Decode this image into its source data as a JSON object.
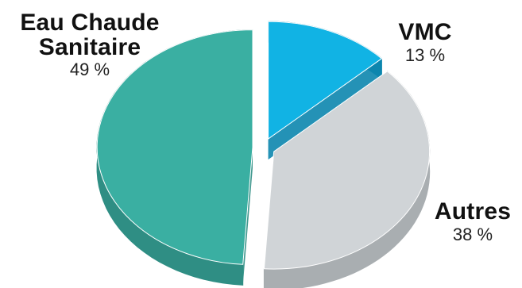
{
  "chart_data": {
    "type": "pie",
    "title": "",
    "slices": [
      {
        "name": "Eau Chaude Sanitaire",
        "value": 49,
        "label_lines": [
          "Eau Chaude",
          "Sanitaire"
        ],
        "pct_label": "49 %",
        "color": "#3aafa2",
        "side_color": "#2f8e84"
      },
      {
        "name": "VMC",
        "value": 13,
        "label_lines": [
          "VMC"
        ],
        "pct_label": "13 %",
        "color": "#11b3e4",
        "side_color": "#0c86ae"
      },
      {
        "name": "Autres",
        "value": 38,
        "label_lines": [
          "Autres"
        ],
        "pct_label": "38 %",
        "color": "#d0d4d7",
        "side_color": "#a9aeb1"
      }
    ]
  }
}
